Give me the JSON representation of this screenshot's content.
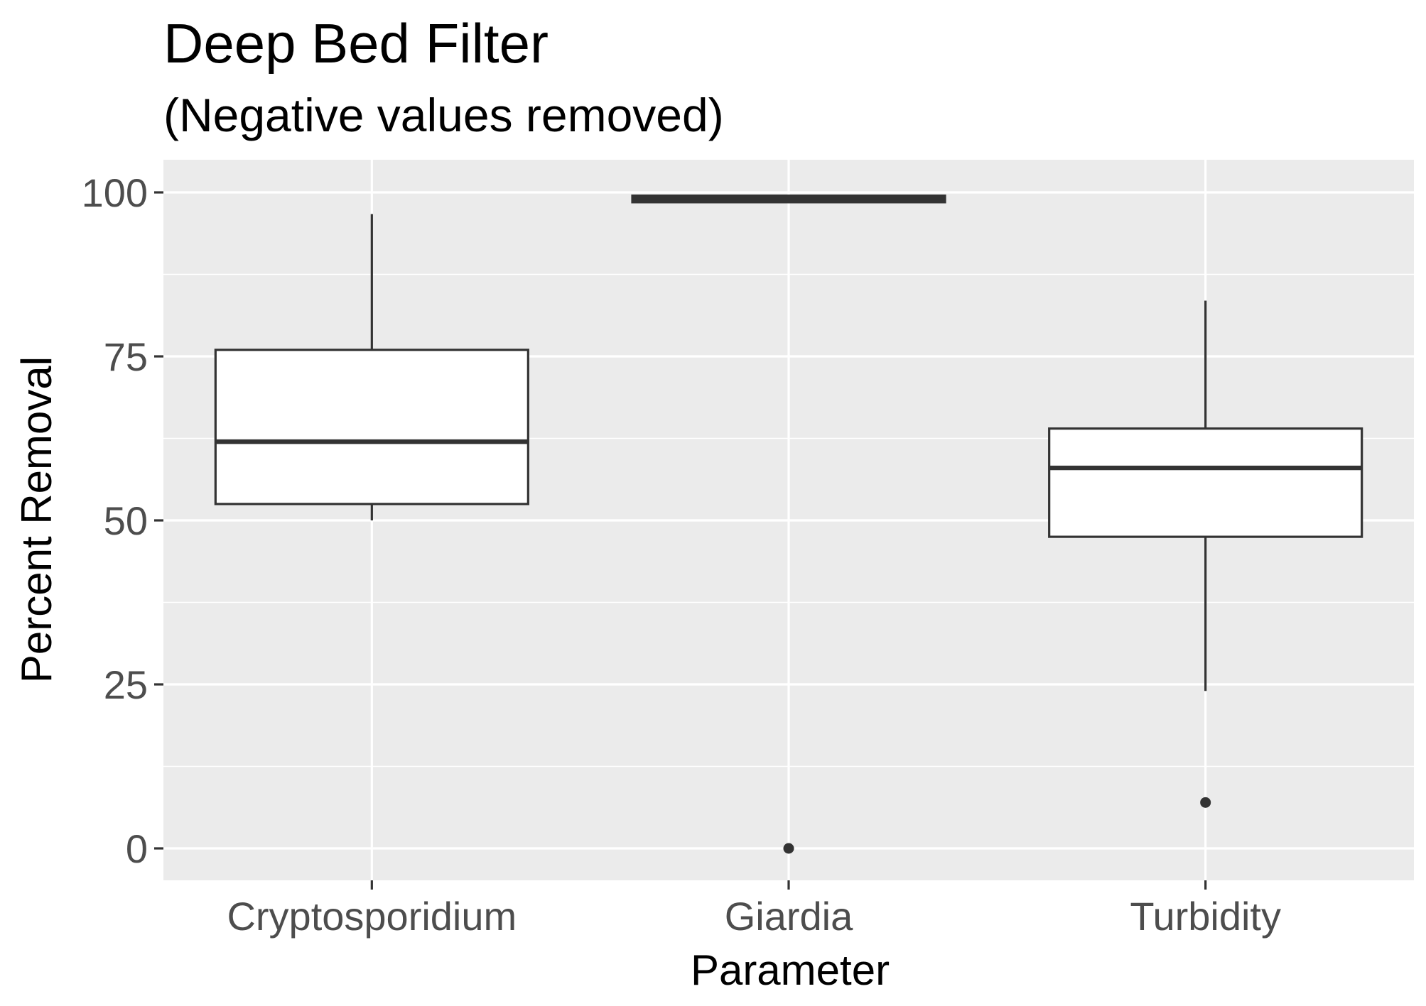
{
  "chart_data": {
    "type": "boxplot",
    "title": "Deep Bed Filter",
    "subtitle": "(Negative values removed)",
    "xlabel": "Parameter",
    "ylabel": "Percent Removal",
    "categories": [
      "Cryptosporidium",
      "Giardia",
      "Turbidity"
    ],
    "ylim": [
      -5,
      105
    ],
    "yticks": [
      0,
      25,
      50,
      75,
      100
    ],
    "grid": true,
    "legend": "none",
    "boxes": [
      {
        "category": "Cryptosporidium",
        "whisker_low": 50,
        "q1": 52.5,
        "median": 62,
        "q3": 76,
        "whisker_high": 96.7,
        "outliers": []
      },
      {
        "category": "Giardia",
        "whisker_low": 98.5,
        "q1": 98.5,
        "median": 99,
        "q3": 99.5,
        "whisker_high": 99.6,
        "outliers": [
          0
        ]
      },
      {
        "category": "Turbidity",
        "whisker_low": 24,
        "q1": 47.5,
        "median": 58,
        "q3": 64,
        "whisker_high": 83.5,
        "outliers": [
          7
        ]
      }
    ],
    "colors": {
      "panel_background": "#ebebeb",
      "grid_line": "#ffffff",
      "box_fill": "#ffffff",
      "box_line": "#333333",
      "tick_text": "#4d4d4d"
    }
  }
}
